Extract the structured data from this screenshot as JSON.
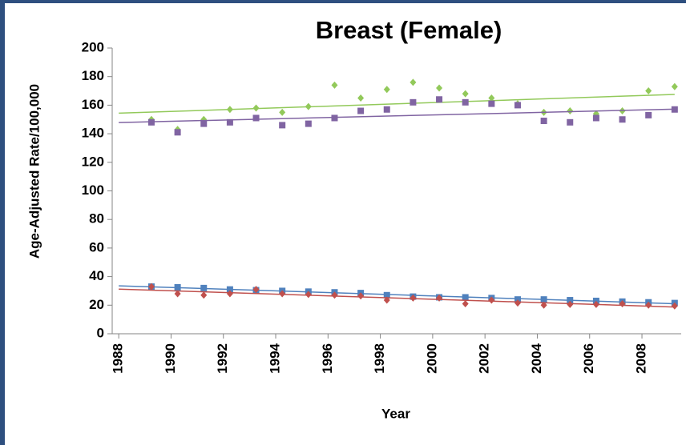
{
  "chart_data": {
    "type": "scatter",
    "title": "Breast (Female)",
    "x_label": "Year",
    "y_label": "Age-Adjusted Rate/100,000",
    "x": [
      1989.25,
      1990.25,
      1991.25,
      1992.25,
      1993.25,
      1994.25,
      1995.25,
      1996.25,
      1997.25,
      1998.25,
      1999.25,
      2000.25,
      2001.25,
      2002.25,
      2003.25,
      2004.25,
      2005.25,
      2006.25,
      2007.25,
      2008.25,
      2009.25
    ],
    "series": [
      {
        "color": "#92c95a",
        "marker": "diamond",
        "values": [
          150,
          143,
          150,
          157,
          158,
          155,
          159,
          174,
          165,
          171,
          176,
          172,
          168,
          165,
          161,
          155,
          156,
          154,
          156,
          170,
          173
        ]
      },
      {
        "color": "#8064a2",
        "marker": "square",
        "values": [
          148,
          141,
          147,
          148,
          151,
          146,
          147,
          151,
          156,
          157,
          162,
          164,
          162,
          161,
          160,
          149,
          148,
          151,
          150,
          153,
          157
        ]
      },
      {
        "color": "#4f81bd",
        "marker": "square",
        "values": [
          33,
          32.5,
          32,
          31,
          30.5,
          30,
          29.5,
          29,
          28.5,
          27,
          26,
          25.5,
          25.5,
          25,
          24,
          24,
          23.5,
          23,
          22.5,
          22,
          21.5
        ]
      },
      {
        "color": "#c0504d",
        "marker": "diamond",
        "values": [
          33,
          28,
          27,
          28,
          31,
          28,
          27.5,
          27,
          26.5,
          23.5,
          25,
          25,
          21,
          23.5,
          21.5,
          20,
          20.5,
          20.5,
          21,
          20,
          19.5
        ]
      }
    ],
    "trendline": true,
    "xlim": [
      1987.75,
      2009.5
    ],
    "xticks": [
      1988,
      1990,
      1992,
      1994,
      1996,
      1998,
      2000,
      2002,
      2004,
      2006,
      2008
    ],
    "ylim": [
      0,
      200
    ],
    "yticks": [
      0,
      20,
      40,
      60,
      80,
      100,
      120,
      140,
      160,
      180,
      200
    ],
    "grid": false
  }
}
